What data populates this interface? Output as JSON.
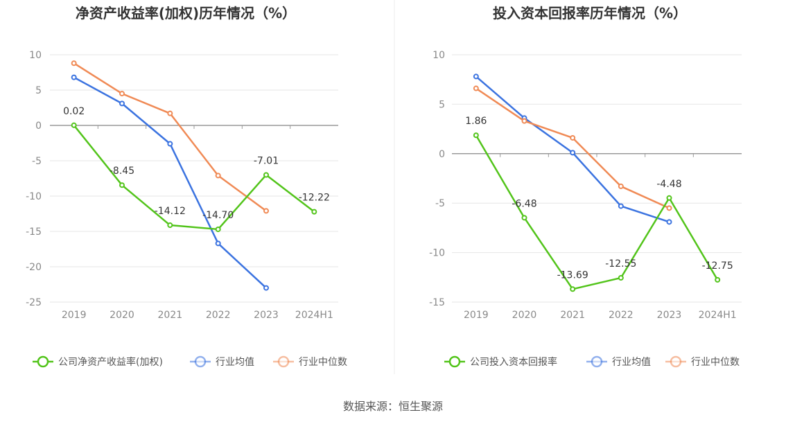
{
  "source": "数据来源：恒生聚源",
  "colors": {
    "company": "#52c41a",
    "industry_avg": "#3b73e0",
    "industry_median": "#f08a55",
    "grid": "#e6e6e6",
    "axis": "#999999"
  },
  "chart_data": [
    {
      "type": "line",
      "title": "净资产收益率(加权)历年情况（%）",
      "categories": [
        "2019",
        "2020",
        "2021",
        "2022",
        "2023",
        "2024H1"
      ],
      "ylim": [
        -25,
        10
      ],
      "yticks": [
        10,
        5,
        0,
        -5,
        -10,
        -15,
        -20,
        -25
      ],
      "grid": true,
      "legend_position": "bottom",
      "series": [
        {
          "key": "company",
          "name": "公司净资产收益率(加权)",
          "values": [
            0.02,
            -8.45,
            -14.12,
            -14.7,
            -7.01,
            -12.22
          ],
          "labels": [
            "0.02",
            "-8.45",
            "-14.12",
            "-14.70",
            "-7.01",
            "-12.22"
          ]
        },
        {
          "key": "industry_avg",
          "name": "行业均值",
          "values": [
            6.8,
            3.1,
            -2.6,
            -16.7,
            -23.0,
            null
          ]
        },
        {
          "key": "industry_median",
          "name": "行业中位数",
          "values": [
            8.8,
            4.5,
            1.7,
            -7.1,
            -12.1,
            null
          ]
        }
      ]
    },
    {
      "type": "line",
      "title": "投入资本回报率历年情况（%）",
      "categories": [
        "2019",
        "2020",
        "2021",
        "2022",
        "2023",
        "2024H1"
      ],
      "ylim": [
        -15,
        10
      ],
      "yticks": [
        10,
        5,
        0,
        -5,
        -10,
        -15
      ],
      "grid": true,
      "legend_position": "bottom",
      "series": [
        {
          "key": "company",
          "name": "公司投入资本回报率",
          "values": [
            1.86,
            -6.48,
            -13.69,
            -12.55,
            -4.48,
            -12.75
          ],
          "labels": [
            "1.86",
            "-6.48",
            "-13.69",
            "-12.55",
            "-4.48",
            "-12.75"
          ]
        },
        {
          "key": "industry_avg",
          "name": "行业均值",
          "values": [
            7.8,
            3.6,
            0.1,
            -5.3,
            -6.9,
            null
          ]
        },
        {
          "key": "industry_median",
          "name": "行业中位数",
          "values": [
            6.6,
            3.3,
            1.6,
            -3.3,
            -5.5,
            null
          ]
        }
      ]
    }
  ]
}
